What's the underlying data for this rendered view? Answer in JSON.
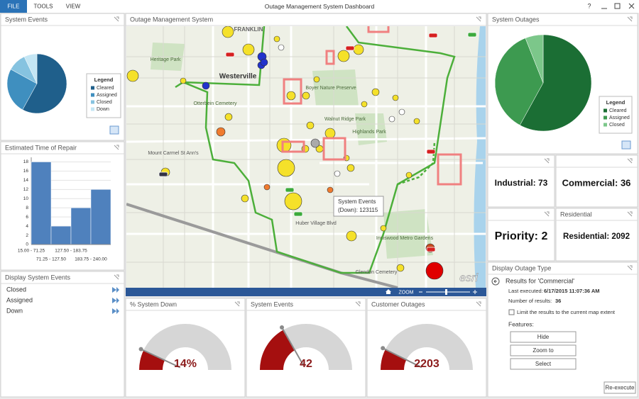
{
  "window": {
    "menu": [
      "FILE",
      "TOOLS",
      "VIEW"
    ],
    "title": "Outage Management System Dashboard",
    "help": "?"
  },
  "system_events": {
    "title": "System Events",
    "chart_data": {
      "type": "pie",
      "legend_title": "Legend",
      "categories": [
        "Cleared",
        "Assigned",
        "Closed",
        "Down"
      ],
      "values": [
        58,
        25,
        10,
        7
      ],
      "colors": [
        "#1f5f8b",
        "#3f8fbf",
        "#86c3e0",
        "#c4e6f4"
      ]
    }
  },
  "repair_time": {
    "title": "Estimated Time of Repair",
    "chart_data": {
      "type": "bar",
      "categories": [
        "15.00 - 71.25",
        "71.25 - 127.50",
        "127.50 - 183.75",
        "183.75 - 240.00"
      ],
      "values": [
        18,
        4,
        8,
        12
      ],
      "color": "#4f81bd",
      "ylim": [
        0,
        19
      ],
      "yticks": [
        0,
        2,
        4,
        6,
        8,
        10,
        12,
        14,
        16,
        18
      ],
      "grid": true
    }
  },
  "display_events": {
    "title": "Display System Events",
    "items": [
      "Closed",
      "Assigned",
      "Down"
    ]
  },
  "map": {
    "title": "Outage Management System",
    "labels": [
      "FRANKLIN",
      "Heritage Park",
      "Westerville",
      "Boyer Nature Preserve",
      "Walnut Ridge Park",
      "Highlands Park",
      "Otterbein Cemetery",
      "Mount Carmel St Ann's",
      "Huber Village Blvd",
      "Inniswood Metro Gardens",
      "Glendon Cemetery"
    ],
    "tooltip": [
      "System Events",
      "(Down): 123115"
    ],
    "zoom": "ZOOM",
    "logo": "esri"
  },
  "gauges": [
    {
      "title": "% System Down",
      "value": 14,
      "value_label": "14%",
      "max": 100
    },
    {
      "title": "System Events",
      "value": 42,
      "max": 125
    },
    {
      "title": "Customer Outages",
      "value": 2203,
      "max": 15000
    }
  ],
  "system_outages": {
    "title": "System Outages",
    "chart_data": {
      "type": "pie",
      "legend_title": "Legend",
      "categories": [
        "Cleared",
        "Assigned",
        "Closed"
      ],
      "values": [
        58,
        36,
        6
      ],
      "colors": [
        "#1b6e34",
        "#3d9a50",
        "#7cc78a"
      ]
    }
  },
  "kpis": [
    {
      "text": "Industrial: 73"
    },
    {
      "text": "Commercial: 36"
    },
    {
      "text": "Priority: 2"
    },
    {
      "header": "Residential",
      "text": "Residential: 2092"
    }
  ],
  "outage_type": {
    "title": "Display Outage Type",
    "results_for": "Results for 'Commercial'",
    "last_executed_label": "Last executed:",
    "last_executed": "6/17/2015 11:07:36 AM",
    "results_label": "Number of results:",
    "results": 36,
    "checkbox": "Limit the results to the current map extent",
    "features": "Features:",
    "buttons": [
      "Hide",
      "Zoom to",
      "Select"
    ],
    "reexecute": "Re-execute"
  }
}
